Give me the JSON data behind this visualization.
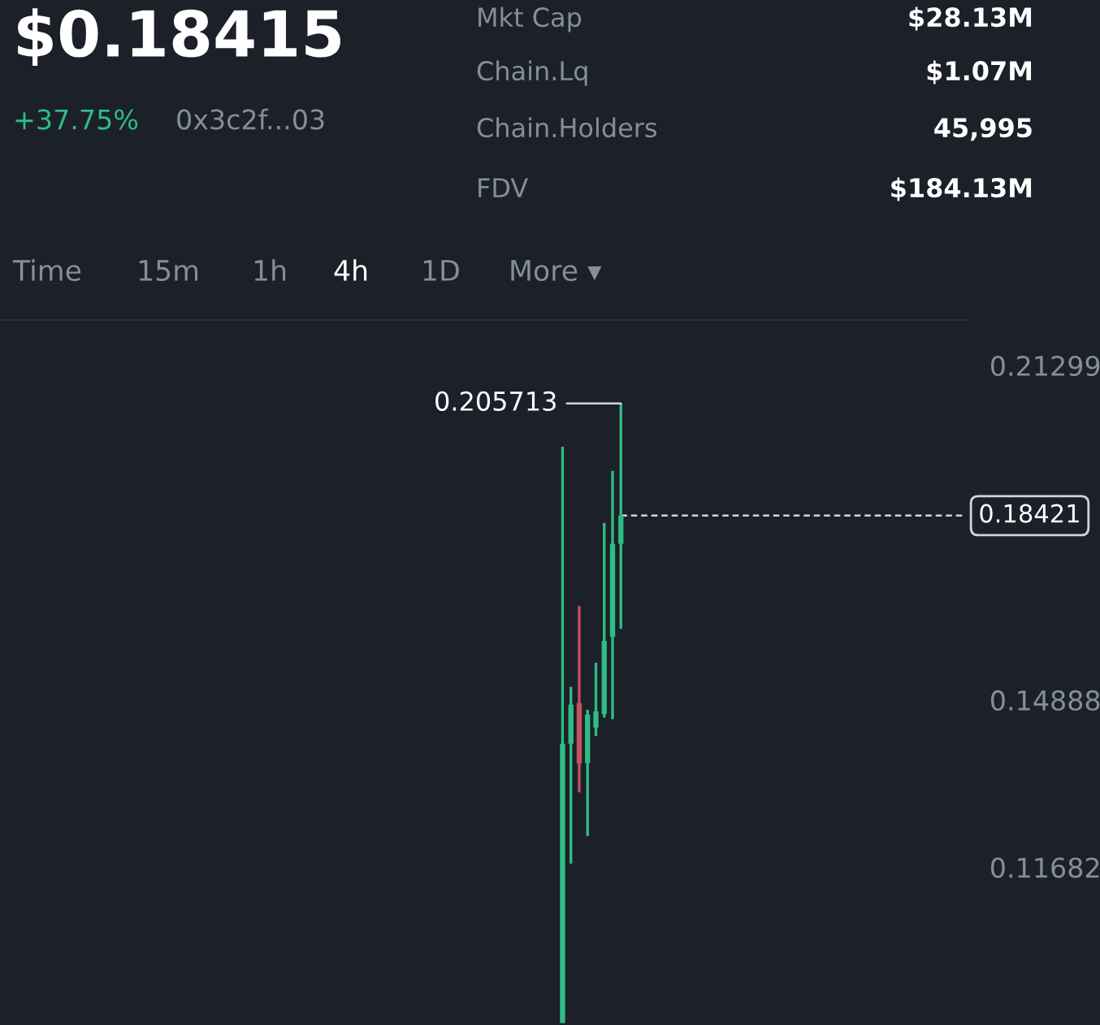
{
  "chart_data": {
    "type": "candlestick",
    "title": "$0.18415",
    "categories": [
      null,
      null,
      null,
      null,
      null,
      null,
      null,
      null,
      null,
      null,
      null,
      null,
      null,
      null,
      null,
      null,
      null,
      null,
      null,
      null,
      null,
      null,
      null,
      null,
      null,
      null,
      null,
      null,
      null,
      null,
      null,
      null,
      null,
      null,
      null,
      null,
      null,
      null,
      null,
      null,
      null,
      null,
      null,
      null,
      null,
      null,
      null,
      null,
      null,
      null,
      null,
      null,
      null,
      null,
      null,
      null,
      null,
      null,
      null,
      null,
      null,
      null,
      null,
      null,
      null,
      null,
      null,
      null,
      null,
      null,
      null,
      null,
      null,
      null,
      null,
      null,
      null,
      null,
      null,
      null,
      null,
      null,
      null,
      null,
      null,
      null,
      null,
      null,
      null,
      null,
      null,
      null,
      null,
      null,
      null,
      null,
      null,
      null,
      null,
      null,
      null,
      null,
      null,
      null,
      null,
      null,
      null,
      null,
      null,
      null,
      null,
      null,
      null,
      null,
      null,
      null
    ],
    "ohlc": [
      null,
      null,
      null,
      null,
      null,
      null,
      null,
      null,
      null,
      null,
      null,
      null,
      null,
      null,
      null,
      null,
      null,
      null,
      null,
      null,
      null,
      null,
      null,
      null,
      null,
      null,
      null,
      null,
      null,
      null,
      null,
      null,
      null,
      null,
      null,
      null,
      null,
      null,
      null,
      null,
      null,
      null,
      null,
      null,
      null,
      null,
      null,
      null,
      null,
      null,
      null,
      null,
      null,
      null,
      null,
      null,
      null,
      null,
      null,
      null,
      null,
      null,
      null,
      null,
      null,
      null,
      null,
      [
        0.087,
        0.1974,
        0.087,
        0.1405
      ],
      [
        0.1405,
        0.1514,
        0.1175,
        0.148
      ],
      [
        0.1483,
        0.1669,
        0.1312,
        0.1367
      ],
      [
        0.1368,
        0.147,
        0.1228,
        0.1461
      ],
      [
        0.1436,
        0.156,
        0.142,
        0.1467
      ],
      [
        0.1462,
        0.1828,
        0.1455,
        0.1602
      ],
      [
        0.161,
        0.1928,
        0.1452,
        0.1788
      ],
      [
        0.1788,
        0.205713,
        0.1625,
        0.18421
      ],
      null,
      null,
      null,
      null,
      null,
      null,
      null,
      null,
      null,
      null,
      null,
      null,
      null,
      null,
      null,
      null,
      null,
      null,
      null,
      null,
      null,
      null,
      null,
      null,
      null,
      null,
      null,
      null,
      null,
      null,
      null,
      null,
      null,
      null,
      null,
      null,
      null,
      null,
      null,
      null,
      null
    ],
    "colors": [
      null,
      null,
      null,
      null,
      null,
      null,
      null,
      null,
      null,
      null,
      null,
      null,
      null,
      null,
      null,
      null,
      null,
      null,
      null,
      null,
      null,
      null,
      null,
      null,
      null,
      null,
      null,
      null,
      null,
      null,
      null,
      null,
      null,
      null,
      null,
      null,
      null,
      null,
      null,
      null,
      null,
      null,
      null,
      null,
      null,
      null,
      null,
      null,
      null,
      null,
      null,
      null,
      null,
      null,
      null,
      null,
      null,
      null,
      null,
      null,
      null,
      null,
      null,
      null,
      null,
      null,
      null,
      "#2ebd85",
      "#2ebd85",
      "#c0545f",
      "#2ebd85",
      "#2ebd85",
      "#2ebd85",
      "#2ebd85",
      "#2ebd85",
      null,
      null,
      null,
      null,
      null,
      null,
      null,
      null,
      null,
      null,
      null,
      null,
      null,
      null,
      null,
      null,
      null,
      null,
      null,
      null,
      null,
      null,
      null,
      null,
      null,
      null,
      null,
      null,
      null,
      null,
      null,
      null,
      null,
      null,
      null,
      null,
      null,
      null,
      null,
      null,
      null
    ],
    "ylim": [
      0.0866,
      0.2217
    ],
    "yticks": [
      0.21299,
      0.14888,
      0.11682
    ],
    "ref_lines": [
      {
        "axis": "y",
        "value": 0.18421,
        "label": "0.18421",
        "color": "#d0d4dc",
        "line_style": "dashed"
      }
    ],
    "grid": false,
    "annotations": [
      "+37.75%",
      "0x3c2f...03",
      "Mkt Cap",
      "$28.13M",
      "Chain.Lq",
      "$1.07M",
      "Chain.Holders",
      "45,995",
      "FDV",
      "$184.13M",
      "Time",
      "15m",
      "1h",
      "4h",
      "1D",
      "More ▾",
      "0.205713"
    ]
  }
}
